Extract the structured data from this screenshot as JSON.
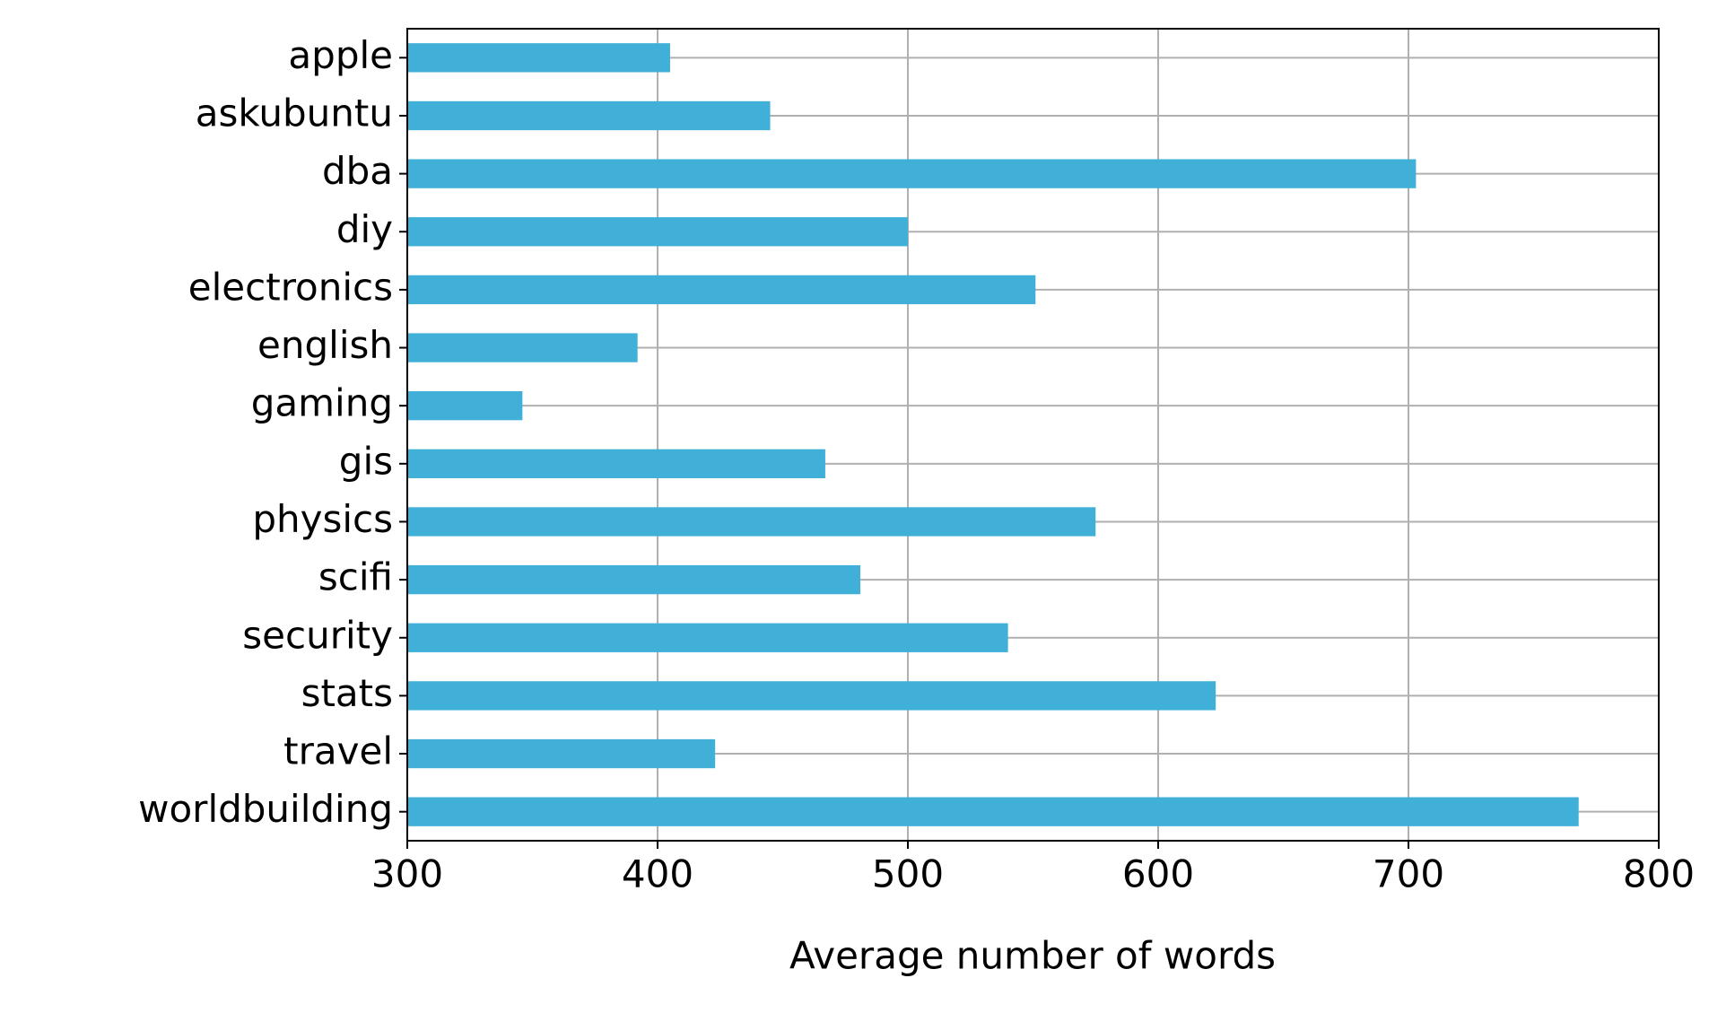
{
  "chart_data": {
    "type": "barh",
    "categories": [
      "apple",
      "askubuntu",
      "dba",
      "diy",
      "electronics",
      "english",
      "gaming",
      "gis",
      "physics",
      "scifi",
      "security",
      "stats",
      "travel",
      "worldbuilding"
    ],
    "values": [
      405,
      445,
      703,
      500,
      551,
      392,
      346,
      467,
      575,
      481,
      540,
      623,
      423,
      768
    ],
    "color": "#40b0d8",
    "x_label": "Average number of words",
    "xlim": [
      300,
      800
    ],
    "xticks": [
      300,
      400,
      500,
      600,
      700,
      800
    ],
    "grid": true
  }
}
